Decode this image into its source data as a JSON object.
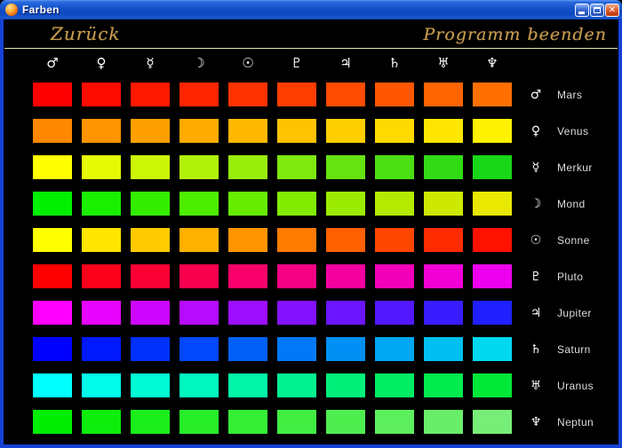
{
  "window": {
    "title": "Farben",
    "controls": {
      "minimize": "minimize",
      "maximize": "maximize",
      "close": "✕"
    }
  },
  "header": {
    "back_label": "Zurück",
    "exit_label": "Programm beenden"
  },
  "planets": [
    {
      "name": "Mars",
      "symbol": "♂",
      "colors": [
        "#FF0000",
        "#FF0C00",
        "#FF1900",
        "#FF2500",
        "#FF3200",
        "#FF3E00",
        "#FF4B00",
        "#FF5700",
        "#FF6400",
        "#FF7000"
      ]
    },
    {
      "name": "Venus",
      "symbol": "♀",
      "colors": [
        "#FF8800",
        "#FF9400",
        "#FFA000",
        "#FFAB00",
        "#FFB700",
        "#FFC300",
        "#FFCF00",
        "#FFDA00",
        "#FFE600",
        "#FFF200"
      ]
    },
    {
      "name": "Merkur",
      "symbol": "☿",
      "colors": [
        "#FFFF00",
        "#E5FA03",
        "#CCF605",
        "#B2F108",
        "#99ED0B",
        "#7FE80D",
        "#65E310",
        "#4CDF13",
        "#32DA15",
        "#18D618"
      ]
    },
    {
      "name": "Mond",
      "symbol": "☽",
      "colors": [
        "#00F000",
        "#1AEF00",
        "#34EE00",
        "#4DED00",
        "#67ED00",
        "#81EC00",
        "#9BEB00",
        "#B4EA00",
        "#CEE900",
        "#E8E800"
      ]
    },
    {
      "name": "Sonne",
      "symbol": "☉",
      "colors": [
        "#FFFF00",
        "#FFE500",
        "#FFCA00",
        "#FFB000",
        "#FF9500",
        "#FF7B00",
        "#FF6000",
        "#FF4600",
        "#FF2B00",
        "#FF1100"
      ]
    },
    {
      "name": "Pluto",
      "symbol": "♇",
      "colors": [
        "#FF0000",
        "#FD001A",
        "#FB0035",
        "#F9004F",
        "#F7006A",
        "#F60084",
        "#F4009F",
        "#F200B9",
        "#F000D4",
        "#EE00EE"
      ]
    },
    {
      "name": "Jupiter",
      "symbol": "♃",
      "colors": [
        "#FF00FF",
        "#E604FF",
        "#CD07FF",
        "#B50BFF",
        "#9C0EFF",
        "#8312FF",
        "#6A15FF",
        "#5219FF",
        "#391CFF",
        "#2020FF"
      ]
    },
    {
      "name": "Saturn",
      "symbol": "♄",
      "colors": [
        "#0000FF",
        "#0018FD",
        "#0030FC",
        "#0048FA",
        "#0060F8",
        "#0078F7",
        "#0090F5",
        "#00A8F3",
        "#00C0F2",
        "#00D8F0"
      ]
    },
    {
      "name": "Uranus",
      "symbol": "♅",
      "colors": [
        "#00FFFF",
        "#00FCE9",
        "#00FAD3",
        "#00F7BD",
        "#00F5A6",
        "#00F290",
        "#00F07A",
        "#00ED64",
        "#00EB4E",
        "#00E838"
      ]
    },
    {
      "name": "Neptun",
      "symbol": "♆",
      "colors": [
        "#00EE00",
        "#0DEE0D",
        "#1AEE1A",
        "#28EE28",
        "#35EE35",
        "#42EE42",
        "#4FEE4F",
        "#5DEE5D",
        "#6AEE6A",
        "#77EE77"
      ]
    }
  ],
  "colors": {
    "accent_gold": "#C79A4B",
    "separator": "#E3E3AC",
    "background": "#000000",
    "titlebar_blue": "#1150C8",
    "border_blue": "#1841D6",
    "label_text": "#DCDCDC"
  }
}
